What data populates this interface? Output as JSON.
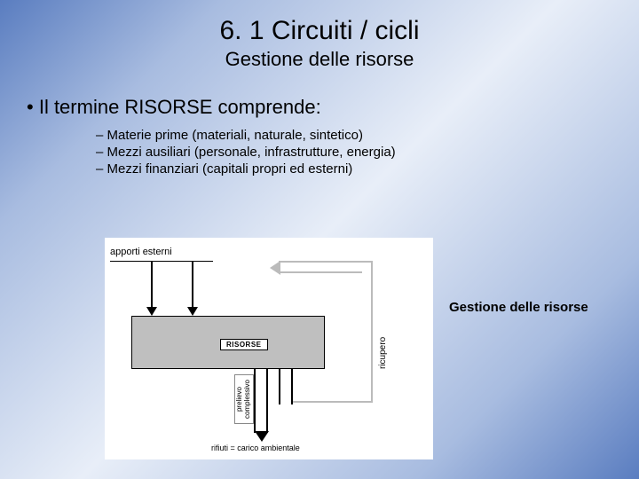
{
  "title": "6. 1 Circuiti / cicli",
  "subtitle": "Gestione delle risorse",
  "main_bullet": "Il termine RISORSE comprende:",
  "sub_bullets": [
    "Materie prime (materiali, naturale, sintetico)",
    "Mezzi ausiliari (personale, infrastrutture, energia)",
    "Mezzi finanziari (capitali propri ed esterni)"
  ],
  "side_label": "Gestione delle risorse",
  "diagram": {
    "external_label": "apporti esterni",
    "box_label": "RISORSE",
    "recupero_label": "ricupero",
    "prelievo_label": "prelievo complessivo",
    "rifiuti_label": "rifiuti = carico ambientale",
    "box_fill": "#bfbfbf",
    "bg": "#ffffff"
  },
  "colors": {
    "gradient_start": "#5a7dc0",
    "gradient_mid": "#e8eef8",
    "text": "#000000"
  }
}
